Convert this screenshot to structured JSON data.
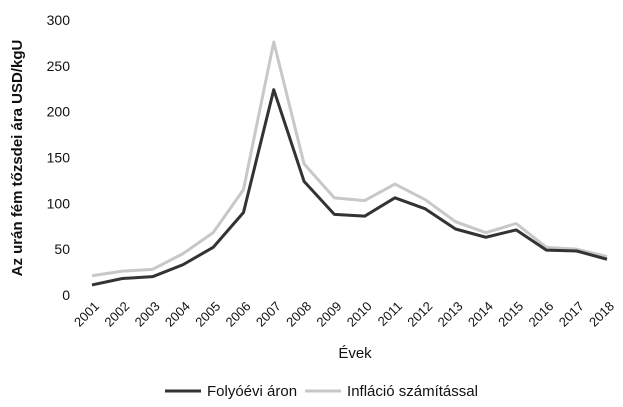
{
  "chart_data": {
    "type": "line",
    "y_label": "Az urán fém tőzsdei ára USD/kgU",
    "x_label": "Évek",
    "categories": [
      "2001",
      "2002",
      "2003",
      "2004",
      "2005",
      "2006",
      "2007",
      "2008",
      "2009",
      "2010",
      "2011",
      "2012",
      "2013",
      "2014",
      "2015",
      "2016",
      "2017",
      "2018"
    ],
    "series": [
      {
        "name": "Folyóévi áron",
        "color": "#333333",
        "values": [
          11,
          18,
          20,
          33,
          52,
          90,
          224,
          124,
          88,
          86,
          106,
          94,
          72,
          63,
          71,
          49,
          48,
          39
        ]
      },
      {
        "name": "Infláció számítással",
        "color": "#c8c8c8",
        "values": [
          21,
          26,
          28,
          45,
          68,
          115,
          276,
          143,
          106,
          103,
          121,
          104,
          80,
          68,
          78,
          52,
          50,
          42
        ]
      }
    ],
    "ylim": [
      0,
      300
    ],
    "yticks": [
      0,
      50,
      100,
      150,
      200,
      250,
      300
    ],
    "grid": false,
    "legend": "bottom"
  }
}
